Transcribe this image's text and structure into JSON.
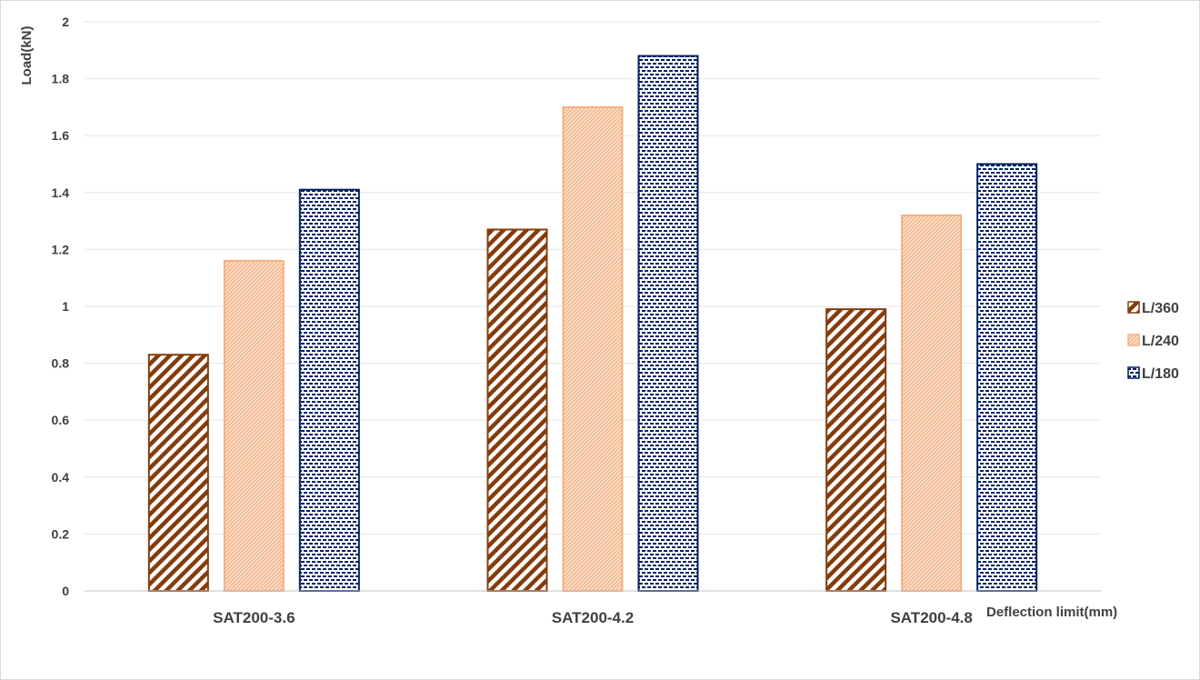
{
  "chart_data": {
    "type": "bar",
    "title": "",
    "xlabel": "Deflection limit(mm)",
    "ylabel": "Load(kN)",
    "categories": [
      "SAT200-3.6",
      "SAT200-4.2",
      "SAT200-4.8"
    ],
    "series": [
      {
        "name": "L/360",
        "values": [
          0.83,
          1.27,
          0.99
        ],
        "color": "#843c0c",
        "pattern": "wide-diagonal"
      },
      {
        "name": "L/240",
        "values": [
          1.16,
          1.7,
          1.32
        ],
        "color": "#f4b183",
        "pattern": "dense-diagonal"
      },
      {
        "name": "L/180",
        "values": [
          1.41,
          1.88,
          1.5
        ],
        "color": "#002060",
        "pattern": "horizontal-dash"
      }
    ],
    "ylim": [
      0,
      2
    ],
    "yticks": [
      "0",
      "0.2",
      "0.4",
      "0.6",
      "0.8",
      "1",
      "1.2",
      "1.4",
      "1.6",
      "1.8",
      "2"
    ],
    "grid": true,
    "legend_position": "right"
  }
}
